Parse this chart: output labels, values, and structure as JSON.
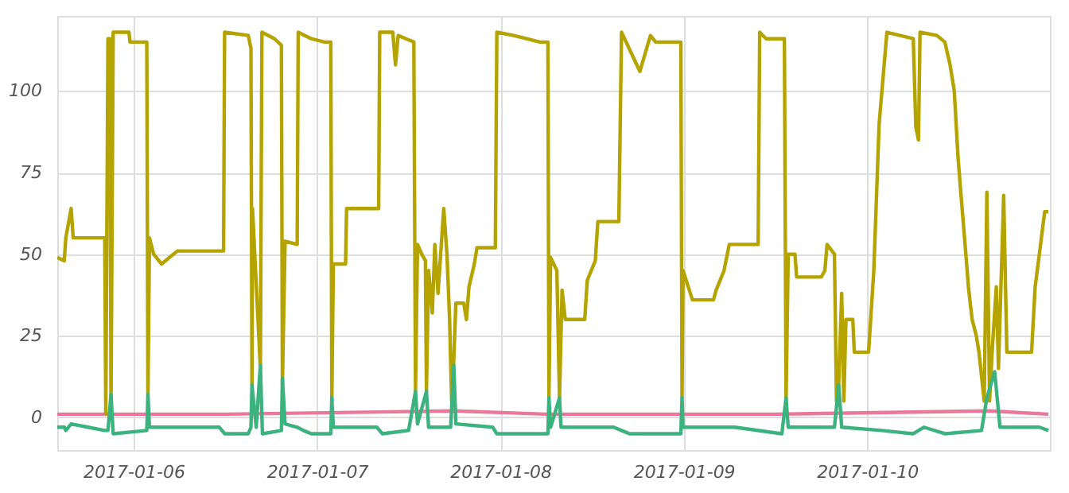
{
  "chart_data": {
    "type": "line",
    "xlim": [
      "2017-01-05T14:00",
      "2017-01-10T23:55"
    ],
    "xticks": [
      "2017-01-06",
      "2017-01-07",
      "2017-01-08",
      "2017-01-09",
      "2017-01-10"
    ],
    "ylim": [
      -10,
      123
    ],
    "yticks": [
      0,
      25,
      50,
      75,
      100
    ],
    "grid": true,
    "marker": "none",
    "line_style": "solid",
    "series": [
      {
        "color": "#e8799a",
        "x": [
          "2017-01-05T14:00",
          "2017-01-06T12:00",
          "2017-01-07T18:00",
          "2017-01-08T06:00",
          "2017-01-09T12:00",
          "2017-01-10T16:00",
          "2017-01-10T23:43"
        ],
        "values": [
          1,
          1,
          2,
          1,
          1,
          2,
          1
        ]
      },
      {
        "color": "#b5a300",
        "x": [
          "2017-01-05T14:00",
          "2017-01-05T14:55",
          "2017-01-05T15:07",
          "2017-01-05T15:49",
          "2017-01-05T16:05",
          "2017-01-05T20:13",
          "2017-01-05T20:21",
          "2017-01-05T20:38",
          "2017-01-05T20:54",
          "2017-01-05T21:02",
          "2017-01-05T21:19",
          "2017-01-05T23:23",
          "2017-01-05T23:31",
          "2017-01-06T01:43",
          "2017-01-06T01:52",
          "2017-01-06T02:04",
          "2017-01-06T02:37",
          "2017-01-06T03:39",
          "2017-01-06T05:43",
          "2017-01-06T11:46",
          "2017-01-06T11:54",
          "2017-01-06T15:00",
          "2017-01-06T15:21",
          "2017-01-06T15:29",
          "2017-01-06T15:33",
          "2017-01-06T16:35",
          "2017-01-06T16:47",
          "2017-01-06T18:26",
          "2017-01-06T19:20",
          "2017-01-06T19:28",
          "2017-01-06T19:49",
          "2017-01-06T21:24",
          "2017-01-06T21:32",
          "2017-01-06T23:15",
          "2017-01-07T00:58",
          "2017-01-07T01:48",
          "2017-01-07T01:56",
          "2017-01-07T02:08",
          "2017-01-07T03:44",
          "2017-01-07T03:52",
          "2017-01-07T08:04",
          "2017-01-07T08:12",
          "2017-01-07T09:55",
          "2017-01-07T10:16",
          "2017-01-07T10:37",
          "2017-01-07T11:38",
          "2017-01-07T12:40",
          "2017-01-07T12:53",
          "2017-01-07T13:09",
          "2017-01-07T13:42",
          "2017-01-07T14:11",
          "2017-01-07T14:19",
          "2017-01-07T14:36",
          "2017-01-07T15:05",
          "2017-01-07T15:25",
          "2017-01-07T15:50",
          "2017-01-07T16:35",
          "2017-01-07T17:00",
          "2017-01-07T17:21",
          "2017-01-07T17:37",
          "2017-01-07T17:54",
          "2017-01-07T18:10",
          "2017-01-07T19:12",
          "2017-01-07T19:33",
          "2017-01-07T19:53",
          "2017-01-07T20:35",
          "2017-01-07T20:56",
          "2017-01-07T23:20",
          "2017-01-07T23:32",
          "2017-01-08T01:44",
          "2017-01-08T05:11",
          "2017-01-08T06:13",
          "2017-01-08T06:21",
          "2017-01-08T06:34",
          "2017-01-08T07:23",
          "2017-01-08T07:44",
          "2017-01-08T08:04",
          "2017-01-08T08:29",
          "2017-01-08T11:02",
          "2017-01-08T11:22",
          "2017-01-08T12:25",
          "2017-01-08T12:45",
          "2017-01-08T15:30",
          "2017-01-08T15:51",
          "2017-01-08T18:15",
          "2017-01-08T19:38",
          "2017-01-08T20:19",
          "2017-01-08T23:37",
          "2017-01-08T23:46",
          "2017-01-08T23:54",
          "2017-01-09T01:08",
          "2017-01-09T03:53",
          "2017-01-09T04:14",
          "2017-01-09T05:16",
          "2017-01-09T05:57",
          "2017-01-09T09:44",
          "2017-01-09T09:56",
          "2017-01-09T10:46",
          "2017-01-09T13:10",
          "2017-01-09T13:23",
          "2017-01-09T13:40",
          "2017-01-09T14:33",
          "2017-01-09T14:46",
          "2017-01-09T17:59",
          "2017-01-09T18:28",
          "2017-01-09T18:45",
          "2017-01-09T19:43",
          "2017-01-09T19:59",
          "2017-01-09T20:16",
          "2017-01-09T20:40",
          "2017-01-09T20:57",
          "2017-01-09T21:13",
          "2017-01-09T22:07",
          "2017-01-09T22:19",
          "2017-01-10T00:11",
          "2017-01-10T00:52",
          "2017-01-10T01:34",
          "2017-01-10T02:35",
          "2017-01-10T06:02",
          "2017-01-10T06:22",
          "2017-01-10T06:43",
          "2017-01-10T06:55",
          "2017-01-10T09:08",
          "2017-01-10T10:10",
          "2017-01-10T10:51",
          "2017-01-10T11:24",
          "2017-01-10T11:53",
          "2017-01-10T12:13",
          "2017-01-10T12:55",
          "2017-01-10T13:15",
          "2017-01-10T13:44",
          "2017-01-10T14:17",
          "2017-01-10T14:38",
          "2017-01-10T15:19",
          "2017-01-10T15:40",
          "2017-01-10T16:01",
          "2017-01-10T16:21",
          "2017-01-10T16:54",
          "2017-01-10T17:11",
          "2017-01-10T17:52",
          "2017-01-10T18:17",
          "2017-01-10T21:31",
          "2017-01-10T21:59",
          "2017-01-10T22:32",
          "2017-01-10T23:14",
          "2017-01-10T23:43"
        ],
        "values": [
          49,
          48,
          55,
          64,
          55,
          55,
          1,
          116,
          116,
          2,
          118,
          118,
          115,
          115,
          7,
          55,
          50,
          47,
          51,
          51,
          118,
          117,
          113,
          10,
          64,
          15,
          118,
          116,
          114,
          10,
          54,
          53,
          118,
          116,
          115,
          115,
          5,
          47,
          47,
          64,
          64,
          118,
          118,
          108,
          117,
          116,
          115,
          8,
          53,
          50,
          48,
          8,
          45,
          32,
          53,
          38,
          64,
          50,
          30,
          5,
          18,
          35,
          35,
          30,
          40,
          47,
          52,
          52,
          118,
          117,
          115,
          115,
          6,
          49,
          45,
          6,
          39,
          30,
          30,
          42,
          48,
          60,
          60,
          118,
          106,
          117,
          115,
          115,
          6,
          45,
          36,
          36,
          39,
          45,
          53,
          53,
          118,
          116,
          116,
          5,
          50,
          50,
          43,
          43,
          45,
          53,
          50,
          5,
          10,
          38,
          5,
          30,
          30,
          20,
          20,
          45,
          90,
          118,
          116,
          89,
          85,
          118,
          117,
          115,
          108,
          100,
          80,
          70,
          50,
          40,
          30,
          25,
          20,
          5,
          69,
          5,
          20,
          40,
          15,
          68,
          20,
          20,
          40,
          50,
          63,
          63
        ]
      },
      {
        "color": "#3cb37f",
        "x": [
          "2017-01-05T14:00",
          "2017-01-05T14:55",
          "2017-01-05T15:07",
          "2017-01-05T15:49",
          "2017-01-05T18:01",
          "2017-01-05T20:13",
          "2017-01-05T20:38",
          "2017-01-05T21:02",
          "2017-01-05T21:19",
          "2017-01-06T01:43",
          "2017-01-06T01:52",
          "2017-01-06T02:04",
          "2017-01-06T11:13",
          "2017-01-06T11:54",
          "2017-01-06T15:00",
          "2017-01-06T15:21",
          "2017-01-06T15:29",
          "2017-01-06T16:02",
          "2017-01-06T16:35",
          "2017-01-06T16:51",
          "2017-01-06T19:20",
          "2017-01-06T19:28",
          "2017-01-06T19:49",
          "2017-01-06T21:24",
          "2017-01-06T22:13",
          "2017-01-06T23:15",
          "2017-01-07T01:48",
          "2017-01-07T01:56",
          "2017-01-07T02:08",
          "2017-01-07T07:51",
          "2017-01-07T08:32",
          "2017-01-07T11:59",
          "2017-01-07T12:53",
          "2017-01-07T13:09",
          "2017-01-07T14:19",
          "2017-01-07T14:36",
          "2017-01-07T17:29",
          "2017-01-07T17:54",
          "2017-01-07T18:10",
          "2017-01-07T22:59",
          "2017-01-07T23:32",
          "2017-01-08T06:13",
          "2017-01-08T06:21",
          "2017-01-08T06:34",
          "2017-01-08T07:44",
          "2017-01-08T07:56",
          "2017-01-08T14:49",
          "2017-01-08T15:51",
          "2017-01-08T16:53",
          "2017-01-08T23:37",
          "2017-01-08T23:46",
          "2017-01-08T23:54",
          "2017-01-09T06:38",
          "2017-01-09T12:50",
          "2017-01-09T13:23",
          "2017-01-09T13:40",
          "2017-01-09T19:43",
          "2017-01-09T20:16",
          "2017-01-09T20:40",
          "2017-01-10T01:54",
          "2017-01-10T06:02",
          "2017-01-10T07:25",
          "2017-01-10T10:10",
          "2017-01-10T14:58",
          "2017-01-10T15:40",
          "2017-01-10T16:41",
          "2017-01-10T17:23",
          "2017-01-10T22:32",
          "2017-01-10T23:43"
        ],
        "values": [
          -3,
          -3,
          -4,
          -2,
          -3,
          -4,
          -4,
          7,
          -5,
          -4,
          7,
          -3,
          -3,
          -5,
          -5,
          -3,
          10,
          -3,
          16,
          -5,
          -4,
          12,
          -2,
          -3,
          -4,
          -5,
          -5,
          6,
          -3,
          -3,
          -5,
          -4,
          8,
          -2,
          8,
          -3,
          -3,
          16,
          -2,
          -3,
          -5,
          -5,
          6,
          -3,
          6,
          -3,
          -3,
          -4,
          -5,
          -5,
          6,
          -3,
          -3,
          -5,
          6,
          -3,
          -3,
          10,
          -3,
          -4,
          -5,
          -3,
          -5,
          -4,
          6,
          14,
          -3,
          -3,
          -4
        ]
      }
    ]
  }
}
